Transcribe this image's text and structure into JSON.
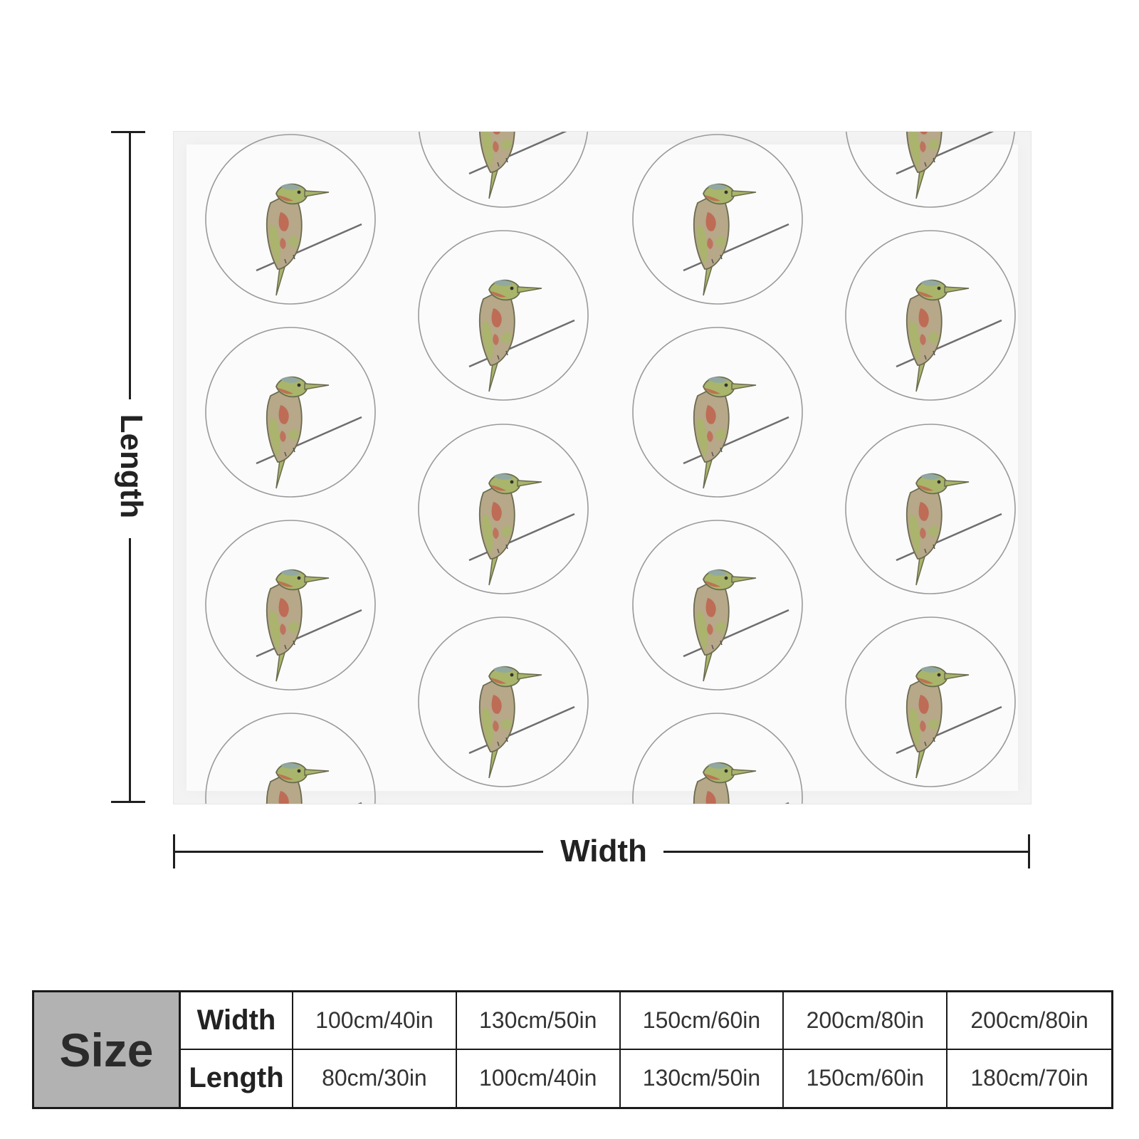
{
  "labels": {
    "length": "Length",
    "width": "Width"
  },
  "table": {
    "header": "Size",
    "rows": [
      {
        "label": "Width",
        "values": [
          "100cm/40in",
          "130cm/50in",
          "150cm/60in",
          "200cm/80in",
          "200cm/80in"
        ]
      },
      {
        "label": "Length",
        "values": [
          "80cm/30in",
          "100cm/40in",
          "130cm/50in",
          "150cm/60in",
          "180cm/70in"
        ]
      }
    ]
  },
  "pattern": {
    "motif": "bird-on-branch-in-circle",
    "colors": {
      "circle": "#9a9a9a",
      "bird_green": "#a9b56a",
      "bird_red": "#c0614d",
      "bird_brown": "#8d7b6a",
      "branch": "#6e6e6e"
    }
  }
}
